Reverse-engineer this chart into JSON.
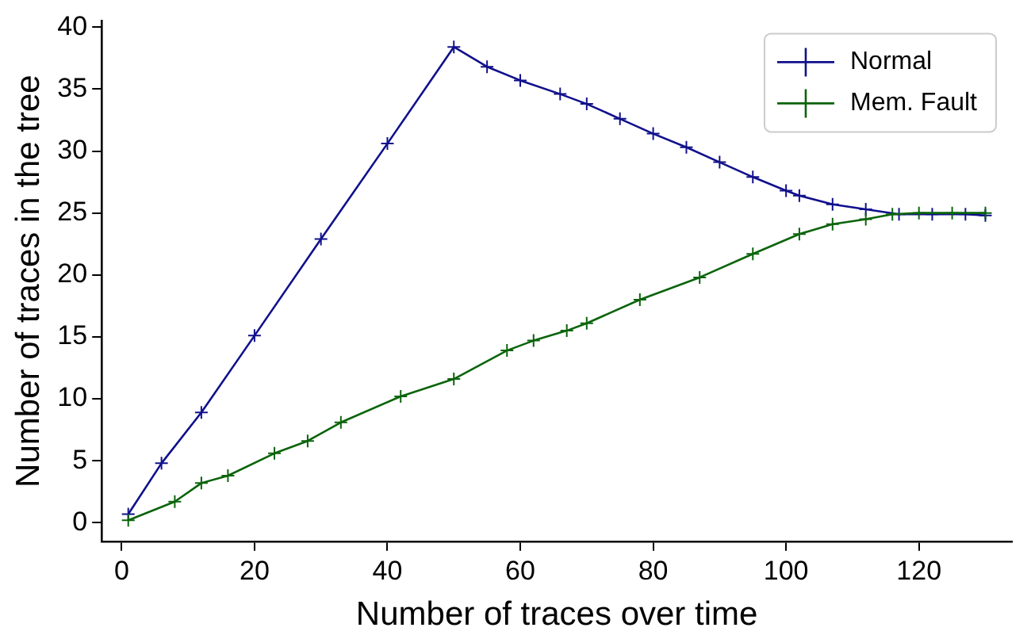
{
  "chart_data": {
    "type": "line",
    "xlabel": "Number of traces over time",
    "ylabel": "Number of traces in the tree",
    "xlim": [
      -3,
      134
    ],
    "ylim": [
      -1.5,
      40.5
    ],
    "xticks": [
      0,
      20,
      40,
      60,
      80,
      100,
      120
    ],
    "yticks": [
      0,
      5,
      10,
      15,
      20,
      25,
      30,
      35,
      40
    ],
    "grid": false,
    "legend": "top right",
    "marker": "cross",
    "line_style": "solid",
    "series": [
      {
        "name": "Normal",
        "color": "#10108c",
        "x": [
          1,
          6,
          12,
          20,
          30,
          40,
          50,
          55,
          60,
          66,
          70,
          75,
          80,
          85,
          90,
          95,
          100,
          102,
          107,
          112,
          117,
          122,
          127,
          130
        ],
        "values": [
          0.7,
          4.8,
          8.9,
          15.1,
          22.9,
          30.6,
          38.4,
          36.8,
          35.7,
          34.6,
          33.8,
          32.6,
          31.4,
          30.3,
          29.1,
          27.9,
          26.8,
          26.4,
          25.7,
          25.3,
          24.9,
          24.9,
          24.9,
          24.8
        ]
      },
      {
        "name": "Mem. Fault",
        "color": "#0b640b",
        "x": [
          1,
          8,
          12,
          16,
          23,
          28,
          33,
          42,
          50,
          58,
          62,
          67,
          70,
          78,
          87,
          95,
          102,
          107,
          112,
          116,
          120,
          125,
          130
        ],
        "values": [
          0.2,
          1.7,
          3.2,
          3.8,
          5.6,
          6.6,
          8.1,
          10.2,
          11.6,
          13.9,
          14.7,
          15.5,
          16.1,
          18.0,
          19.8,
          21.7,
          23.3,
          24.1,
          24.5,
          24.9,
          25.0,
          25.0,
          25.0
        ]
      }
    ]
  }
}
